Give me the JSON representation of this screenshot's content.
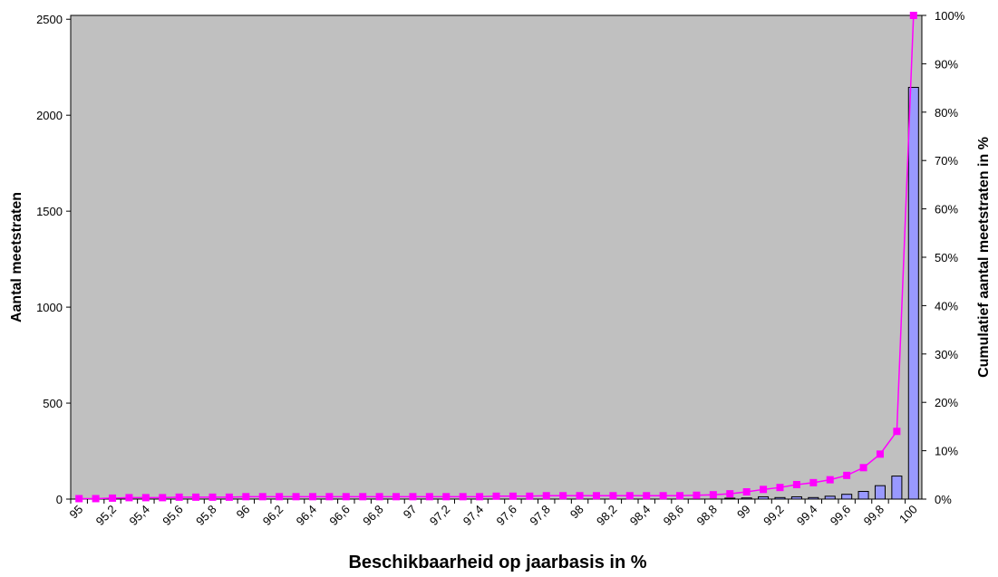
{
  "chart_data": {
    "type": "bar_line",
    "x_label": "Beschikbaarheid op jaarbasis in %",
    "y_label": "Aantal meetstraten",
    "y2_label": "Cumulatief aantal meetstraten in %",
    "categories": [
      "95",
      null,
      "95,2",
      null,
      "95,4",
      null,
      "95,6",
      null,
      "95,8",
      null,
      "96",
      null,
      "96,2",
      null,
      "96,4",
      null,
      "96,6",
      null,
      "96,8",
      null,
      "97",
      null,
      "97,2",
      null,
      "97,4",
      null,
      "97,6",
      null,
      "97,8",
      null,
      "98",
      null,
      "98,2",
      null,
      "98,4",
      null,
      "98,6",
      null,
      "98,8",
      null,
      "99",
      null,
      "99,2",
      null,
      "99,4",
      null,
      "99,6",
      null,
      "99,8",
      null,
      "100"
    ],
    "series": [
      {
        "type": "bar",
        "color": "#9999ff",
        "values": [
          0,
          0,
          0,
          0,
          0,
          0,
          0,
          0,
          0,
          0,
          0,
          0,
          0,
          0,
          0,
          0,
          0,
          0,
          0,
          0,
          0,
          0,
          0,
          0,
          0,
          0,
          0,
          0,
          0,
          0,
          0,
          0,
          0,
          0,
          0,
          0,
          0,
          0,
          0,
          5,
          6,
          12,
          8,
          12,
          8,
          15,
          25,
          40,
          70,
          120,
          2145
        ]
      },
      {
        "type": "line",
        "axis": "y2",
        "color": "#ff00ff",
        "values": [
          0.1,
          0.1,
          0.2,
          0.3,
          0.3,
          0.3,
          0.4,
          0.4,
          0.4,
          0.4,
          0.5,
          0.5,
          0.5,
          0.5,
          0.5,
          0.5,
          0.5,
          0.5,
          0.5,
          0.5,
          0.5,
          0.5,
          0.5,
          0.5,
          0.5,
          0.6,
          0.6,
          0.6,
          0.7,
          0.7,
          0.7,
          0.7,
          0.7,
          0.7,
          0.7,
          0.7,
          0.7,
          0.8,
          0.9,
          1.1,
          1.5,
          2.0,
          2.4,
          3.0,
          3.4,
          4.0,
          4.9,
          6.5,
          9.3,
          14.0,
          100
        ]
      }
    ],
    "ylim": [
      0,
      2520
    ],
    "yticks": [
      0,
      500,
      1000,
      1500,
      2000,
      2500
    ],
    "y2lim": [
      0,
      100
    ],
    "y2ticks": [
      {
        "value": 0,
        "label": "0%"
      },
      {
        "value": 10,
        "label": "10%"
      },
      {
        "value": 20,
        "label": "20%"
      },
      {
        "value": 30,
        "label": "30%"
      },
      {
        "value": 40,
        "label": "40%"
      },
      {
        "value": 50,
        "label": "50%"
      },
      {
        "value": 60,
        "label": "60%"
      },
      {
        "value": 70,
        "label": "70%"
      },
      {
        "value": 80,
        "label": "80%"
      },
      {
        "value": 90,
        "label": "90%"
      },
      {
        "value": 100,
        "label": "100%"
      }
    ],
    "plot_background": "#c0c0c0",
    "grid": false
  }
}
